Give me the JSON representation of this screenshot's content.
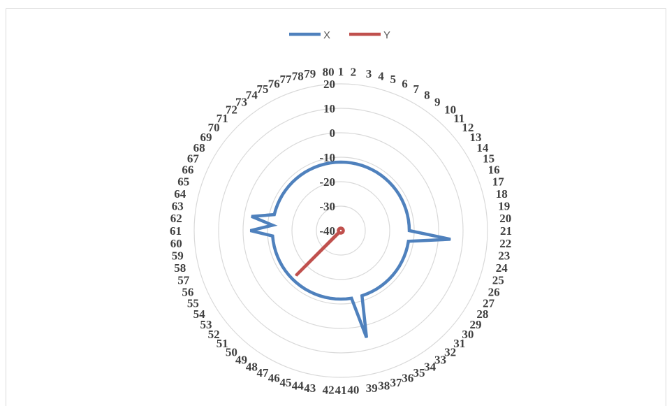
{
  "chart_data": {
    "type": "radar",
    "categories": [
      "1",
      "2",
      "3",
      "4",
      "5",
      "6",
      "7",
      "8",
      "9",
      "10",
      "11",
      "12",
      "13",
      "14",
      "15",
      "16",
      "17",
      "18",
      "19",
      "20",
      "21",
      "22",
      "23",
      "24",
      "25",
      "26",
      "27",
      "28",
      "29",
      "30",
      "31",
      "32",
      "33",
      "34",
      "35",
      "36",
      "37",
      "38",
      "39",
      "40",
      "41",
      "42",
      "43",
      "44",
      "45",
      "46",
      "47",
      "48",
      "49",
      "50",
      "51",
      "52",
      "53",
      "54",
      "55",
      "56",
      "57",
      "58",
      "59",
      "60",
      "61",
      "62",
      "63",
      "64",
      "65",
      "66",
      "67",
      "68",
      "69",
      "70",
      "71",
      "72",
      "73",
      "74",
      "75",
      "76",
      "77",
      "78",
      "79",
      "80"
    ],
    "radial_ticks": [
      "-40",
      "-30",
      "-20",
      "-10",
      "0",
      "10",
      "20"
    ],
    "rlim": [
      -40,
      20
    ],
    "series": [
      {
        "name": "X",
        "color": "#4f81bd",
        "values": [
          -12,
          -12,
          -12,
          -12,
          -12,
          -12,
          -12,
          -12,
          -12,
          -12,
          -12,
          -12,
          -12,
          -12,
          -12,
          -12,
          -12,
          -12,
          -12,
          -12,
          -12,
          5,
          -12,
          -12,
          -12,
          -12,
          -12,
          -12,
          -12,
          -12,
          -12,
          -12,
          -12,
          -12,
          -12,
          -12,
          -12,
          5,
          -12,
          -12,
          -12,
          -12,
          -12,
          -12,
          -12,
          -12,
          -12,
          -12,
          -12,
          -12,
          -12,
          -12,
          -12,
          -12,
          -12,
          -12,
          -12,
          -12,
          -12,
          -12,
          -3,
          -12,
          -3,
          -12,
          -12,
          -12,
          -12,
          -12,
          -12,
          -12,
          -12,
          -12,
          -12,
          -12,
          -12,
          -12,
          -12,
          -12,
          -12,
          -12
        ]
      },
      {
        "name": "Y",
        "color": "#c0504d",
        "values": [
          -39,
          -39,
          -39,
          -39,
          -39,
          -39,
          -39,
          -39,
          -39,
          -39,
          -39,
          -39,
          -39,
          -39,
          -39,
          -39,
          -39,
          -39,
          -39,
          -39,
          -39,
          -39,
          -39,
          -39,
          -39,
          -39,
          -39,
          -39,
          -39,
          -39,
          -39,
          -39,
          -39,
          -39,
          -39,
          -39,
          -39,
          -39,
          -39,
          -39,
          -39,
          -39,
          -39,
          -39,
          -39,
          -39,
          -39,
          -39,
          -39,
          -39,
          -14,
          -39,
          -39,
          -39,
          -39,
          -39,
          -39,
          -39,
          -39,
          -39,
          -39,
          -39,
          -39,
          -39,
          -39,
          -39,
          -39,
          -39,
          -39,
          -39,
          -39,
          -39,
          -39,
          -39,
          -39,
          -39,
          -39,
          -39,
          -39,
          -39
        ]
      }
    ],
    "legend_position": "top",
    "grid": true
  }
}
